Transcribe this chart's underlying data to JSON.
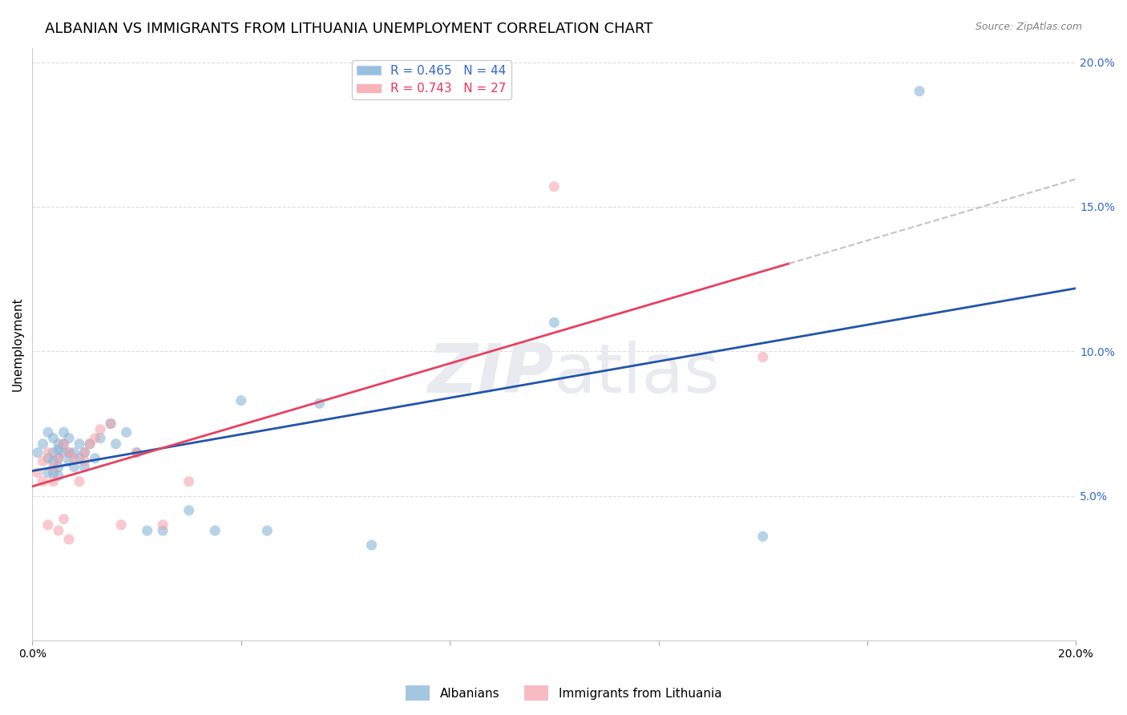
{
  "title": "ALBANIAN VS IMMIGRANTS FROM LITHUANIA UNEMPLOYMENT CORRELATION CHART",
  "source": "Source: ZipAtlas.com",
  "ylabel": "Unemployment",
  "x_min": 0.0,
  "x_max": 0.2,
  "y_min": 0.0,
  "y_max": 0.205,
  "x_ticks": [
    0.0,
    0.04,
    0.08,
    0.12,
    0.16,
    0.2
  ],
  "x_tick_labels": [
    "0.0%",
    "",
    "",
    "",
    "",
    "20.0%"
  ],
  "y_ticks": [
    0.0,
    0.05,
    0.1,
    0.15,
    0.2
  ],
  "y_tick_labels": [
    "",
    "5.0%",
    "10.0%",
    "15.0%",
    "20.0%"
  ],
  "albanians_x": [
    0.001,
    0.002,
    0.003,
    0.003,
    0.003,
    0.004,
    0.004,
    0.004,
    0.004,
    0.005,
    0.005,
    0.005,
    0.005,
    0.005,
    0.006,
    0.006,
    0.006,
    0.007,
    0.007,
    0.007,
    0.008,
    0.008,
    0.009,
    0.009,
    0.01,
    0.01,
    0.011,
    0.012,
    0.013,
    0.015,
    0.016,
    0.018,
    0.02,
    0.022,
    0.025,
    0.03,
    0.035,
    0.04,
    0.045,
    0.055,
    0.065,
    0.1,
    0.14,
    0.17
  ],
  "albanians_y": [
    0.065,
    0.068,
    0.072,
    0.063,
    0.058,
    0.07,
    0.065,
    0.062,
    0.058,
    0.068,
    0.066,
    0.063,
    0.06,
    0.057,
    0.072,
    0.068,
    0.065,
    0.07,
    0.065,
    0.062,
    0.065,
    0.06,
    0.068,
    0.063,
    0.065,
    0.06,
    0.068,
    0.063,
    0.07,
    0.075,
    0.068,
    0.072,
    0.065,
    0.038,
    0.038,
    0.045,
    0.038,
    0.083,
    0.038,
    0.082,
    0.033,
    0.11,
    0.036,
    0.19
  ],
  "lithuania_x": [
    0.001,
    0.002,
    0.002,
    0.003,
    0.003,
    0.004,
    0.004,
    0.005,
    0.005,
    0.006,
    0.006,
    0.007,
    0.007,
    0.008,
    0.009,
    0.01,
    0.01,
    0.011,
    0.012,
    0.013,
    0.015,
    0.017,
    0.02,
    0.025,
    0.03,
    0.1,
    0.14
  ],
  "lithuania_y": [
    0.058,
    0.062,
    0.055,
    0.065,
    0.04,
    0.06,
    0.055,
    0.063,
    0.038,
    0.068,
    0.042,
    0.065,
    0.035,
    0.063,
    0.055,
    0.065,
    0.062,
    0.068,
    0.07,
    0.073,
    0.075,
    0.04,
    0.065,
    0.04,
    0.055,
    0.157,
    0.098
  ],
  "albanian_R": 0.465,
  "albanian_N": 44,
  "lithuania_R": 0.743,
  "lithuania_N": 27,
  "blue_color": "#7EB0D5",
  "pink_color": "#F4A0A8",
  "blue_line_color": "#2255AA",
  "pink_line_color": "#E84060",
  "dashed_line_color": "#C8C0C0",
  "watermark_color": "#E8EAF0",
  "background_color": "#FFFFFF",
  "grid_color": "#DDDDDD",
  "title_fontsize": 13,
  "label_fontsize": 11,
  "tick_fontsize": 10,
  "legend_fontsize": 11
}
